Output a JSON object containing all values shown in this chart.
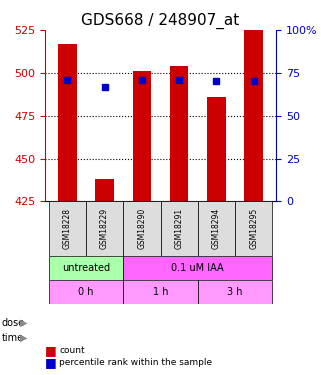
{
  "title": "GDS668 / 248907_at",
  "categories": [
    "GSM18228",
    "GSM18229",
    "GSM18290",
    "GSM18291",
    "GSM18294",
    "GSM18295"
  ],
  "bar_values": [
    517,
    438,
    501,
    504,
    486,
    525
  ],
  "bar_bottom": 425,
  "dot_values": [
    496,
    492,
    496,
    496,
    495,
    495
  ],
  "ylim_left": [
    425,
    525
  ],
  "ylim_right": [
    0,
    100
  ],
  "yticks_left": [
    425,
    450,
    475,
    500,
    525
  ],
  "yticks_right": [
    0,
    25,
    50,
    75,
    100
  ],
  "bar_color": "#cc0000",
  "dot_color": "#0000cc",
  "left_tick_color": "#cc0000",
  "right_tick_color": "#0000cc",
  "title_fontsize": 11,
  "tick_fontsize": 8,
  "bar_width": 0.5,
  "dose_untreated_color": "#aaffaa",
  "dose_treated_color": "#ff66ff",
  "time_color": "#ff99ff",
  "label_bg": "#dddddd",
  "grid_yticks": [
    500,
    475,
    450
  ],
  "time_specs": [
    [
      -0.5,
      2,
      0.5,
      "0 h"
    ],
    [
      1.5,
      2,
      2.5,
      "1 h"
    ],
    [
      3.5,
      2,
      4.5,
      "3 h"
    ]
  ]
}
